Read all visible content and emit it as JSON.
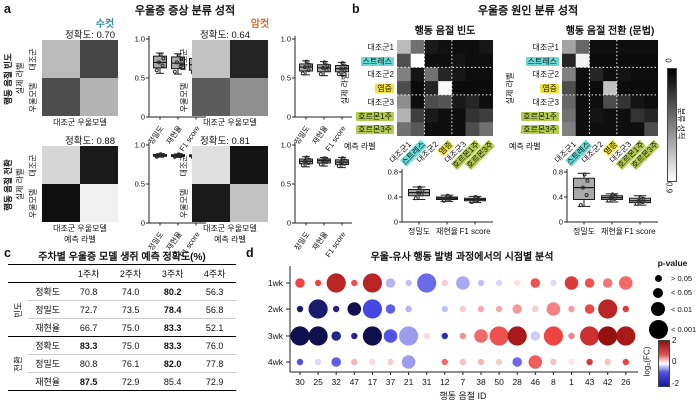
{
  "a": {
    "label": "a",
    "title": "우울증 증상 분류 성적",
    "male_label": "수컷",
    "female_label": "암컷",
    "colors": {
      "male": "#2f8fa3",
      "female": "#c8703c"
    },
    "row_group_labels": [
      "행동 음절 빈도",
      "행동 음절 전환"
    ],
    "y_axis_label": "실제 라벨",
    "x_axis_label": "예측 라벨",
    "matrix_row_labels": [
      "대조군",
      "우울모델"
    ],
    "matrix_col_label": "대조군 우울모델",
    "quadrants": [
      {
        "name": "male-frequency",
        "accuracy_text": "정확도: 0.70"
      },
      {
        "name": "female-frequency",
        "accuracy_text": "정확도: 0.64"
      },
      {
        "name": "male-transition",
        "accuracy_text": "정확도: 0.88"
      },
      {
        "name": "female-transition",
        "accuracy_text": "정확도: 0.81"
      }
    ]
  },
  "b": {
    "label": "b",
    "title": "우울증 원인 분류 성적",
    "subtitles": [
      "행동 음절 빈도",
      "행동 음절 전환 (문법)"
    ],
    "y_axis_label": "실제 라벨",
    "x_axis_label": "예측 라벨",
    "class_labels": [
      "대조군1",
      "스트레스",
      "대조군2",
      "염증",
      "대조군3",
      "호르몬1주",
      "호르몬3주"
    ],
    "label_highlights": [
      null,
      "#69d9d5",
      null,
      "#f2e33c",
      null,
      "#b3cc4e",
      "#b3cc4e"
    ],
    "colorbar": {
      "top_label": "0",
      "bottom_label": "0.9",
      "title": "분류 성적"
    }
  },
  "c": {
    "label": "c",
    "title": "주차별 우울증 모델 생쥐 예측 정확도(%)",
    "col_headers": [
      "1주차",
      "2주차",
      "3주차",
      "4주차"
    ],
    "groups": [
      {
        "label": "빈도",
        "rows": [
          {
            "metric": "정확도",
            "values": [
              "70.8",
              "74.0",
              "80.2",
              "56.3"
            ],
            "bold": [
              false,
              false,
              true,
              false
            ]
          },
          {
            "metric": "정밀도",
            "values": [
              "72.7",
              "73.5",
              "78.4",
              "56.8"
            ],
            "bold": [
              false,
              false,
              true,
              false
            ]
          },
          {
            "metric": "재현율",
            "values": [
              "66.7",
              "75.0",
              "83.3",
              "52.1"
            ],
            "bold": [
              false,
              false,
              true,
              false
            ]
          }
        ]
      },
      {
        "label": "전환",
        "rows": [
          {
            "metric": "정확도",
            "values": [
              "83.3",
              "75.0",
              "83.3",
              "76.0"
            ],
            "bold": [
              true,
              false,
              true,
              false
            ]
          },
          {
            "metric": "정밀도",
            "values": [
              "80.8",
              "76.1",
              "82.0",
              "77.8"
            ],
            "bold": [
              false,
              false,
              true,
              false
            ]
          },
          {
            "metric": "재현율",
            "values": [
              "87.5",
              "72.9",
              "85.4",
              "72.9"
            ],
            "bold": [
              true,
              false,
              false,
              false
            ]
          }
        ]
      }
    ]
  },
  "d": {
    "label": "d",
    "title": "우울-유사 행동 발병 과정에서의 시점별 분석",
    "x_axis_label": "행동 음절 ID",
    "legend": {
      "p_title": "p-value",
      "items": [
        {
          "label": "> 0.05"
        },
        {
          "label": "< 0.05"
        },
        {
          "label": "< 0.01"
        },
        {
          "label": "< 0.001"
        }
      ],
      "fc_title": "log₂(FC)",
      "fc_ticks": [
        "2",
        "0",
        "-2"
      ]
    }
  },
  "chart_data": [
    {
      "id": "a0mat",
      "type": "heatmap",
      "title": "정확도: 0.70",
      "rows": [
        "대조군",
        "우울모델"
      ],
      "cols": [
        "대조군",
        "우울모델"
      ],
      "vmax": 1,
      "values": [
        [
          0.73,
          0.27
        ],
        [
          0.3,
          0.7
        ]
      ]
    },
    {
      "id": "a1mat",
      "type": "heatmap",
      "title": "정확도: 0.64",
      "rows": [
        "대조군",
        "우울모델"
      ],
      "cols": [
        "대조군",
        "우울모델"
      ],
      "vmax": 1,
      "values": [
        [
          0.76,
          0.14
        ],
        [
          0.36,
          0.56
        ]
      ]
    },
    {
      "id": "a2mat",
      "type": "heatmap",
      "title": "정확도: 0.88",
      "rows": [
        "대조군",
        "우울모델"
      ],
      "cols": [
        "대조군",
        "우울모델"
      ],
      "vmax": 1,
      "values": [
        [
          0.84,
          0.1
        ],
        [
          0.06,
          0.94
        ]
      ]
    },
    {
      "id": "a3mat",
      "type": "heatmap",
      "title": "정확도: 0.81",
      "rows": [
        "대조군",
        "우울모델"
      ],
      "cols": [
        "대조군",
        "우울모델"
      ],
      "vmax": 1,
      "values": [
        [
          0.88,
          0.08
        ],
        [
          0.1,
          0.76
        ]
      ]
    },
    {
      "id": "a0box",
      "type": "box",
      "categories": [
        "정밀도",
        "재현율",
        "F1 score"
      ],
      "ylim": [
        0,
        1
      ],
      "yticks": [
        {
          "v": 0,
          "l": "0"
        },
        {
          "v": 0.5,
          "l": "0.5"
        },
        {
          "v": 1.0,
          "l": "1.0"
        }
      ],
      "series": [
        {
          "lo": 0.56,
          "q1": 0.63,
          "med": 0.7,
          "q3": 0.78,
          "hi": 0.82,
          "pts": [
            0.6,
            0.66,
            0.7,
            0.75,
            0.8
          ]
        },
        {
          "lo": 0.55,
          "q1": 0.62,
          "med": 0.69,
          "q3": 0.77,
          "hi": 0.81,
          "pts": [
            0.58,
            0.65,
            0.7,
            0.74,
            0.79
          ]
        },
        {
          "lo": 0.54,
          "q1": 0.6,
          "med": 0.67,
          "q3": 0.75,
          "hi": 0.8,
          "pts": [
            0.57,
            0.62,
            0.68,
            0.73,
            0.78
          ]
        }
      ]
    },
    {
      "id": "a1box",
      "type": "box",
      "categories": [
        "정밀도",
        "재현율",
        "F1 score"
      ],
      "ylim": [
        0,
        1
      ],
      "yticks": [
        {
          "v": 0,
          "l": "0"
        },
        {
          "v": 0.5,
          "l": "0.5"
        },
        {
          "v": 1.0,
          "l": "1.0"
        }
      ],
      "series": [
        {
          "lo": 0.54,
          "q1": 0.59,
          "med": 0.64,
          "q3": 0.68,
          "hi": 0.72,
          "pts": [
            0.56,
            0.6,
            0.64,
            0.67,
            0.71
          ]
        },
        {
          "lo": 0.53,
          "q1": 0.58,
          "med": 0.63,
          "q3": 0.67,
          "hi": 0.71,
          "pts": [
            0.55,
            0.6,
            0.63,
            0.66,
            0.7
          ]
        },
        {
          "lo": 0.53,
          "q1": 0.58,
          "med": 0.62,
          "q3": 0.66,
          "hi": 0.7,
          "pts": [
            0.55,
            0.59,
            0.62,
            0.65,
            0.69
          ]
        }
      ]
    },
    {
      "id": "a2box",
      "type": "box",
      "categories": [
        "정밀도",
        "재현율",
        "F1 score"
      ],
      "ylim": [
        0,
        1
      ],
      "yticks": [
        {
          "v": 0,
          "l": "0"
        },
        {
          "v": 0.5,
          "l": "0.5"
        },
        {
          "v": 1.0,
          "l": "1.0"
        }
      ],
      "series": [
        {
          "lo": 0.845,
          "q1": 0.855,
          "med": 0.867,
          "q3": 0.878,
          "hi": 0.888,
          "pts": [
            0.85,
            0.86,
            0.866,
            0.872,
            0.882
          ]
        },
        {
          "lo": 0.842,
          "q1": 0.853,
          "med": 0.864,
          "q3": 0.876,
          "hi": 0.886,
          "pts": [
            0.848,
            0.857,
            0.864,
            0.87,
            0.88
          ]
        },
        {
          "lo": 0.84,
          "q1": 0.851,
          "med": 0.862,
          "q3": 0.874,
          "hi": 0.884,
          "pts": [
            0.846,
            0.855,
            0.862,
            0.868,
            0.878
          ]
        }
      ]
    },
    {
      "id": "a3box",
      "type": "box",
      "categories": [
        "정밀도",
        "재현율",
        "F1 score"
      ],
      "ylim": [
        0,
        1
      ],
      "yticks": [
        {
          "v": 0,
          "l": "0"
        },
        {
          "v": 0.5,
          "l": "0.5"
        },
        {
          "v": 1.0,
          "l": "1.0"
        }
      ],
      "series": [
        {
          "lo": 0.72,
          "q1": 0.76,
          "med": 0.79,
          "q3": 0.82,
          "hi": 0.85,
          "pts": [
            0.74,
            0.77,
            0.79,
            0.81,
            0.84
          ]
        },
        {
          "lo": 0.73,
          "q1": 0.77,
          "med": 0.8,
          "q3": 0.82,
          "hi": 0.84,
          "pts": [
            0.75,
            0.78,
            0.8,
            0.81,
            0.83
          ]
        },
        {
          "lo": 0.71,
          "q1": 0.75,
          "med": 0.78,
          "q3": 0.81,
          "hi": 0.84,
          "pts": [
            0.73,
            0.76,
            0.78,
            0.8,
            0.83
          ]
        }
      ]
    },
    {
      "id": "bfmat",
      "type": "heatmap",
      "title": "행동 음절 빈도",
      "vmax": 0.9,
      "dash": [
        2,
        4
      ],
      "rows": [
        "대조군1",
        "스트레스",
        "대조군2",
        "염증",
        "대조군3",
        "호르몬1주",
        "호르몬3주"
      ],
      "values": [
        [
          0.66,
          0.4,
          0.09,
          0.06,
          0.05,
          0.05,
          0.08
        ],
        [
          0.28,
          0.9,
          0.05,
          0.05,
          0.07,
          0.05,
          0.05
        ],
        [
          0.45,
          0.07,
          0.4,
          0.13,
          0.08,
          0.05,
          0.05
        ],
        [
          0.27,
          0.04,
          0.13,
          0.88,
          0.04,
          0.04,
          0.04
        ],
        [
          0.5,
          0.05,
          0.27,
          0.3,
          0.09,
          0.13,
          0.05
        ],
        [
          0.63,
          0.22,
          0.09,
          0.05,
          0.05,
          0.18,
          0.22
        ],
        [
          0.4,
          0.31,
          0.05,
          0.05,
          0.05,
          0.27,
          0.4
        ]
      ]
    },
    {
      "id": "btmat",
      "type": "heatmap",
      "title": "행동 음절 전환 (문법)",
      "vmax": 0.9,
      "dash": [
        2,
        4
      ],
      "rows": [
        "대조군1",
        "스트레스",
        "대조군2",
        "염증",
        "대조군3",
        "호르몬1주",
        "호르몬3주"
      ],
      "values": [
        [
          0.58,
          0.36,
          0.05,
          0.05,
          0.05,
          0.05,
          0.05
        ],
        [
          0.13,
          0.86,
          0.04,
          0.04,
          0.04,
          0.04,
          0.04
        ],
        [
          0.45,
          0.05,
          0.13,
          0.05,
          0.07,
          0.05,
          0.05
        ],
        [
          0.27,
          0.04,
          0.04,
          0.68,
          0.04,
          0.04,
          0.04
        ],
        [
          0.36,
          0.05,
          0.05,
          0.27,
          0.18,
          0.07,
          0.05
        ],
        [
          0.4,
          0.05,
          0.07,
          0.05,
          0.05,
          0.18,
          0.13
        ],
        [
          0.45,
          0.05,
          0.05,
          0.05,
          0.05,
          0.05,
          0.27
        ]
      ]
    },
    {
      "id": "bfbox",
      "type": "box",
      "categories": [
        "정밀도",
        "재현율",
        "F1 score"
      ],
      "ylim": [
        0,
        0.8
      ],
      "yticks": [
        {
          "v": 0,
          "l": "0"
        },
        {
          "v": 0.4,
          "l": "0.4"
        },
        {
          "v": 0.8,
          "l": "0.8"
        }
      ],
      "series": [
        {
          "lo": 0.36,
          "q1": 0.42,
          "med": 0.47,
          "q3": 0.52,
          "hi": 0.56,
          "pts": [
            0.38,
            0.44,
            0.47,
            0.5,
            0.55
          ]
        },
        {
          "lo": 0.33,
          "q1": 0.36,
          "med": 0.38,
          "q3": 0.4,
          "hi": 0.43,
          "pts": [
            0.34,
            0.37,
            0.38,
            0.39,
            0.42
          ]
        },
        {
          "lo": 0.31,
          "q1": 0.34,
          "med": 0.36,
          "q3": 0.38,
          "hi": 0.41,
          "pts": [
            0.32,
            0.35,
            0.36,
            0.37,
            0.4
          ]
        }
      ]
    },
    {
      "id": "btbox",
      "type": "box",
      "categories": [
        "정밀도",
        "재현율",
        "F1 score"
      ],
      "ylim": [
        0,
        0.8
      ],
      "yticks": [
        {
          "v": 0,
          "l": "0"
        },
        {
          "v": 0.4,
          "l": "0.4"
        },
        {
          "v": 0.8,
          "l": "0.8"
        }
      ],
      "series": [
        {
          "lo": 0.25,
          "q1": 0.36,
          "med": 0.55,
          "q3": 0.7,
          "hi": 0.78,
          "pts": [
            0.27,
            0.43,
            0.55,
            0.66,
            0.76
          ]
        },
        {
          "lo": 0.32,
          "q1": 0.36,
          "med": 0.39,
          "q3": 0.42,
          "hi": 0.45,
          "pts": [
            0.34,
            0.37,
            0.39,
            0.41,
            0.44
          ]
        },
        {
          "lo": 0.27,
          "q1": 0.31,
          "med": 0.34,
          "q3": 0.38,
          "hi": 0.42,
          "pts": [
            0.29,
            0.32,
            0.34,
            0.37,
            0.4
          ]
        }
      ]
    },
    {
      "id": "dbub",
      "type": "bubble-grid",
      "x": [
        "30",
        "25",
        "32",
        "47",
        "17",
        "37",
        "21",
        "31",
        "12",
        "7",
        "38",
        "50",
        "28",
        "46",
        "8",
        "1",
        "43",
        "42",
        "26"
      ],
      "rows": [
        "1wk",
        "2wk",
        "3wk",
        "4wk"
      ],
      "fc_range": [
        -2,
        2
      ],
      "p_classes": [
        "> 0.05",
        "< 0.05",
        "< 0.01",
        "< 0.001"
      ],
      "fc": [
        [
          1.5,
          1.5,
          1.8,
          1.4,
          1.8,
          -0.6,
          -0.5,
          -1.2,
          0.4,
          -0.7,
          -0.5,
          -0.35,
          0.25,
          1.4,
          -0.3,
          1.6,
          1.4,
          1.1,
          1.2
        ],
        [
          -1.9,
          -1.9,
          -1.8,
          -2,
          -1.5,
          -1.3,
          -0.6,
          null,
          -0.5,
          0.4,
          0.7,
          0.7,
          0.8,
          0.4,
          1.0,
          0.8,
          1.5,
          1.8,
          1.6
        ],
        [
          -2,
          -2,
          -1.8,
          -1.8,
          -2,
          -1.4,
          -0.8,
          0.3,
          -1.7,
          0.9,
          1.2,
          1.4,
          1.9,
          -0.4,
          1.5,
          1.0,
          1.7,
          2,
          1.9
        ],
        [
          -1.4,
          -0.3,
          -1.3,
          0.6,
          0.3,
          0.4,
          -0.8,
          null,
          1.2,
          0.5,
          0.6,
          0.4,
          -1.2,
          1.3,
          0.5,
          0.2,
          1.6,
          0.5,
          1.5
        ]
      ],
      "p_class": [
        [
          1,
          0,
          3,
          0,
          3,
          1,
          0,
          3,
          0,
          2,
          0,
          0,
          0,
          1,
          0,
          2,
          1,
          1,
          2
        ],
        [
          0,
          3,
          0,
          2,
          3,
          1,
          0,
          null,
          0,
          0,
          0,
          0,
          1,
          0,
          2,
          0,
          1,
          3,
          0
        ],
        [
          3,
          3,
          1,
          0,
          3,
          2,
          3,
          0,
          0,
          0,
          2,
          3,
          3,
          1,
          3,
          0,
          3,
          3,
          3
        ],
        [
          0,
          0,
          1,
          0,
          0,
          0,
          2,
          null,
          0,
          0,
          0,
          0,
          1,
          2,
          0,
          0,
          0,
          0,
          0
        ]
      ]
    }
  ]
}
